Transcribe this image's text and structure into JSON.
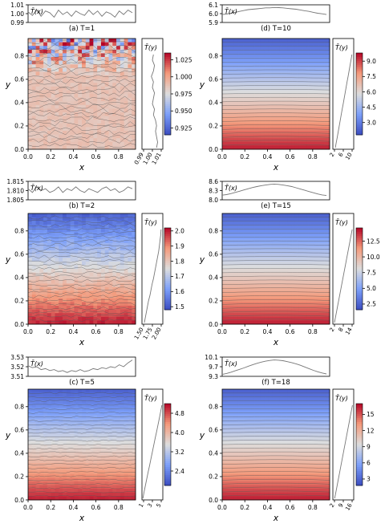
{
  "chart_data": [
    {
      "type": "heatmap",
      "title": "(a) T=1",
      "xlabel": "x",
      "ylabel": "y",
      "x_ticks": [
        "0.0",
        "0.2",
        "0.4",
        "0.6",
        "0.8"
      ],
      "y_ticks": [
        "0.0",
        "0.2",
        "0.4",
        "0.6",
        "0.8"
      ],
      "profile_x": {
        "label": "T̄(x)",
        "ticks": [
          "0.99",
          "1.00",
          "1.01"
        ],
        "ylim": [
          0.99,
          1.01
        ],
        "values": [
          1.002,
          0.998,
          1.004,
          0.997,
          1.003,
          1.001,
          0.996,
          1.004,
          0.999,
          1.002,
          0.997,
          1.003,
          1.0,
          0.998,
          1.004,
          0.999,
          1.003,
          0.997,
          1.002,
          1.0,
          0.996,
          1.003,
          0.999,
          1.004,
          1.001
        ]
      },
      "profile_y": {
        "label": "T̄(y)",
        "ticks": [
          "0.99",
          "1.00",
          "1.01"
        ],
        "xlim": [
          0.99,
          1.01
        ],
        "values": [
          1.001,
          1.0,
          1.002,
          1.001,
          0.999,
          1.001,
          1.0,
          1.002,
          1.001,
          1.0,
          1.002,
          1.001,
          1.003,
          1.004,
          1.003,
          1.004,
          1.005,
          1.004
        ]
      },
      "colorbar": {
        "ticks": [
          "1.025",
          "1.000",
          "0.975",
          "0.950",
          "0.925"
        ],
        "min": 0.915,
        "max": 1.035
      },
      "field": {
        "mode": "noisy",
        "base": 0.6,
        "noise": 0.06,
        "top_noise": 0.55
      }
    },
    {
      "type": "heatmap",
      "title": "(b) T=2",
      "xlabel": "x",
      "ylabel": "y",
      "x_ticks": [
        "0.0",
        "0.2",
        "0.4",
        "0.6",
        "0.8"
      ],
      "y_ticks": [
        "0.0",
        "0.2",
        "0.4",
        "0.6",
        "0.8"
      ],
      "profile_x": {
        "label": "T̄(x)",
        "ticks": [
          "1.805",
          "1.810",
          "1.815"
        ],
        "ylim": [
          1.805,
          1.815
        ],
        "values": [
          1.811,
          1.809,
          1.812,
          1.81,
          1.811,
          1.809,
          1.81,
          1.812,
          1.809,
          1.811,
          1.81,
          1.812,
          1.81,
          1.809,
          1.811,
          1.81,
          1.809,
          1.811,
          1.812,
          1.81,
          1.811,
          1.809,
          1.81,
          1.812,
          1.811
        ]
      },
      "profile_y": {
        "label": "T̄(y)",
        "ticks": [
          "1.50",
          "1.75",
          "2.00"
        ],
        "xlim": [
          1.45,
          2.05
        ],
        "values": [
          2.0,
          1.99,
          1.97,
          1.95,
          1.93,
          1.9,
          1.87,
          1.84,
          1.81,
          1.78,
          1.74,
          1.71,
          1.68,
          1.64,
          1.61,
          1.58,
          1.55,
          1.52
        ]
      },
      "colorbar": {
        "ticks": [
          "2.0",
          "1.9",
          "1.8",
          "1.7",
          "1.6",
          "1.5"
        ],
        "min": 1.48,
        "max": 2.02
      },
      "field": {
        "mode": "gradient",
        "noise": 0.035
      }
    },
    {
      "type": "heatmap",
      "title": "(c) T=5",
      "xlabel": "x",
      "ylabel": "y",
      "x_ticks": [
        "0.0",
        "0.2",
        "0.4",
        "0.6",
        "0.8"
      ],
      "y_ticks": [
        "0.0",
        "0.2",
        "0.4",
        "0.6",
        "0.8"
      ],
      "profile_x": {
        "label": "T̄(x)",
        "ticks": [
          "3.51",
          "3.52",
          "3.53"
        ],
        "ylim": [
          3.51,
          3.53
        ],
        "values": [
          3.521,
          3.519,
          3.52,
          3.517,
          3.518,
          3.516,
          3.517,
          3.515,
          3.516,
          3.514,
          3.516,
          3.515,
          3.517,
          3.515,
          3.516,
          3.518,
          3.517,
          3.519,
          3.518,
          3.52,
          3.519,
          3.522,
          3.52,
          3.524,
          3.527
        ]
      },
      "profile_y": {
        "label": "T̄(y)",
        "ticks": [
          "1",
          "3",
          "5"
        ],
        "xlim": [
          0.8,
          5.2
        ],
        "values": [
          5.0,
          4.78,
          4.55,
          4.32,
          4.08,
          3.84,
          3.6,
          3.36,
          3.12,
          2.88,
          2.64,
          2.4,
          2.16,
          1.92,
          1.68,
          1.44,
          1.2,
          1.0
        ]
      },
      "colorbar": {
        "ticks": [
          "4.8",
          "4.0",
          "3.2",
          "2.4"
        ],
        "min": 1.8,
        "max": 5.2
      },
      "field": {
        "mode": "gradient",
        "noise": 0.008
      }
    },
    {
      "type": "heatmap",
      "title": "(d) T=10",
      "xlabel": "x",
      "ylabel": "y",
      "x_ticks": [
        "0.0",
        "0.2",
        "0.4",
        "0.6",
        "0.8"
      ],
      "y_ticks": [
        "0.0",
        "0.2",
        "0.4",
        "0.6",
        "0.8"
      ],
      "profile_x": {
        "label": "T̄(x)",
        "ticks": [
          "5.9",
          "6.0",
          "6.1"
        ],
        "ylim": [
          5.9,
          6.1
        ],
        "values": [
          5.99,
          5.995,
          6.005,
          6.015,
          6.025,
          6.035,
          6.045,
          6.05,
          6.055,
          6.06,
          6.065,
          6.065,
          6.07,
          6.068,
          6.065,
          6.06,
          6.055,
          6.05,
          6.042,
          6.033,
          6.025,
          6.015,
          6.005,
          5.998,
          5.99
        ]
      },
      "profile_y": {
        "label": "T̄(y)",
        "ticks": [
          "2",
          "6",
          "10"
        ],
        "xlim": [
          1.2,
          10.8
        ],
        "values": [
          10.0,
          9.55,
          9.1,
          8.65,
          8.2,
          7.75,
          7.3,
          6.85,
          6.4,
          5.95,
          5.5,
          5.05,
          4.6,
          4.15,
          3.7,
          3.25,
          2.8,
          2.35
        ]
      },
      "colorbar": {
        "ticks": [
          "9.0",
          "7.5",
          "6.0",
          "4.5",
          "3.0"
        ],
        "min": 1.8,
        "max": 9.8
      },
      "field": {
        "mode": "gradient",
        "noise": 0.0
      }
    },
    {
      "type": "heatmap",
      "title": "(e) T=15",
      "xlabel": "x",
      "ylabel": "y",
      "x_ticks": [
        "0.0",
        "0.2",
        "0.4",
        "0.6",
        "0.8"
      ],
      "y_ticks": [
        "0.0",
        "0.2",
        "0.4",
        "0.6",
        "0.8"
      ],
      "profile_x": {
        "label": "T̄(x)",
        "ticks": [
          "8.0",
          "8.3",
          "8.6"
        ],
        "ylim": [
          8.0,
          8.6
        ],
        "values": [
          8.15,
          8.17,
          8.2,
          8.24,
          8.28,
          8.32,
          8.36,
          8.4,
          8.43,
          8.46,
          8.48,
          8.5,
          8.51,
          8.5,
          8.48,
          8.46,
          8.43,
          8.39,
          8.35,
          8.31,
          8.27,
          8.23,
          8.19,
          8.16,
          8.14
        ]
      },
      "profile_y": {
        "label": "T̄(y)",
        "ticks": [
          "2",
          "8",
          "14"
        ],
        "xlim": [
          1.0,
          15.0
        ],
        "values": [
          14.0,
          13.3,
          12.6,
          11.9,
          11.2,
          10.5,
          9.8,
          9.1,
          8.4,
          7.7,
          7.0,
          6.3,
          5.6,
          4.9,
          4.2,
          3.5,
          2.8,
          2.1
        ]
      },
      "colorbar": {
        "ticks": [
          "12.5",
          "10.0",
          "7.5",
          "5.0",
          "2.5"
        ],
        "min": 1.6,
        "max": 14.6
      },
      "field": {
        "mode": "gradient",
        "noise": 0.0
      }
    },
    {
      "type": "heatmap",
      "title": "(f) T=18",
      "xlabel": "x",
      "ylabel": "y",
      "x_ticks": [
        "0.0",
        "0.2",
        "0.4",
        "0.6",
        "0.8"
      ],
      "y_ticks": [
        "0.0",
        "0.2",
        "0.4",
        "0.6",
        "0.8"
      ],
      "profile_x": {
        "label": "T̄(x)",
        "ticks": [
          "9.3",
          "9.7",
          "10.1"
        ],
        "ylim": [
          9.3,
          10.1
        ],
        "values": [
          9.38,
          9.42,
          9.47,
          9.53,
          9.59,
          9.65,
          9.72,
          9.78,
          9.84,
          9.89,
          9.93,
          9.96,
          9.98,
          9.97,
          9.95,
          9.91,
          9.87,
          9.82,
          9.76,
          9.69,
          9.62,
          9.55,
          9.49,
          9.44,
          9.4
        ]
      },
      "profile_y": {
        "label": "T̄(y)",
        "ticks": [
          "2",
          "9",
          "16"
        ],
        "xlim": [
          1.0,
          17.0
        ],
        "values": [
          16.0,
          15.2,
          14.4,
          13.6,
          12.8,
          12.0,
          11.2,
          10.4,
          9.6,
          8.8,
          8.0,
          7.2,
          6.4,
          5.6,
          4.8,
          4.0,
          3.2,
          2.4
        ]
      },
      "colorbar": {
        "ticks": [
          "15",
          "12",
          "9",
          "6",
          "3"
        ],
        "min": 1.8,
        "max": 17.0
      },
      "field": {
        "mode": "gradient",
        "noise": 0.0
      }
    }
  ]
}
